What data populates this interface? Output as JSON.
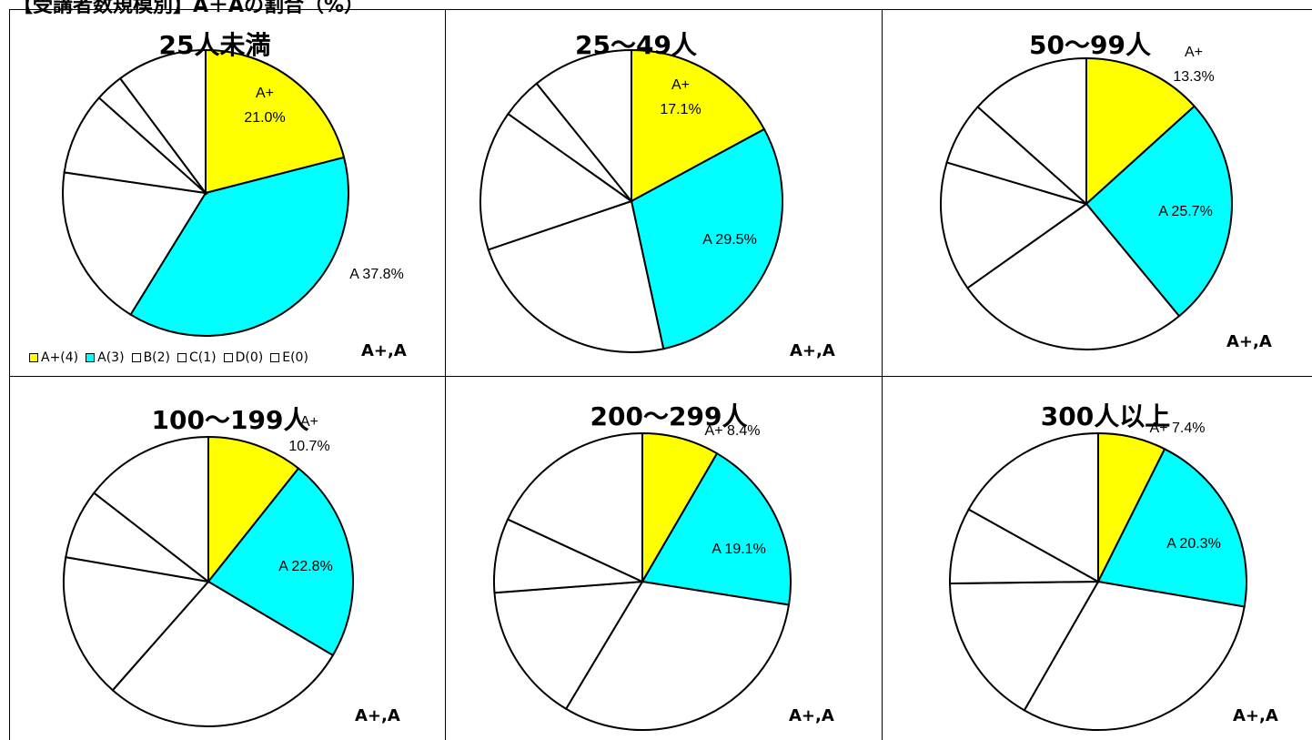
{
  "page_title": "【受講者数規模別】A＋Aの割合（%）",
  "colors": {
    "A+": "#ffff00",
    "A": "#00ffff",
    "other": "#ffffff",
    "stroke": "#000000"
  },
  "legend": [
    {
      "label": "A+(4)",
      "color": "#ffff00"
    },
    {
      "label": "A(3)",
      "color": "#00ffff"
    },
    {
      "label": "B(2)",
      "color": "#ffffff"
    },
    {
      "label": "C(1)",
      "color": "#ffffff"
    },
    {
      "label": "D(0)",
      "color": "#ffffff"
    },
    {
      "label": "E(0)",
      "color": "#ffffff"
    }
  ],
  "chart_data": [
    {
      "type": "pie",
      "title": "25人未満",
      "note": "A+,A",
      "slices": [
        {
          "name": "A+",
          "value": 21.0,
          "label_lines": [
            "A+",
            "21.0%"
          ]
        },
        {
          "name": "A",
          "value": 37.8,
          "label_lines": [
            "A 37.8%"
          ]
        },
        {
          "name": "B",
          "value": 18.5,
          "label_lines": []
        },
        {
          "name": "C",
          "value": 9.3,
          "label_lines": []
        },
        {
          "name": "D",
          "value": 3.2,
          "label_lines": []
        },
        {
          "name": "E",
          "value": 10.2,
          "label_lines": []
        }
      ]
    },
    {
      "type": "pie",
      "title": "25～49人",
      "note": "A+,A",
      "slices": [
        {
          "name": "A+",
          "value": 17.1,
          "label_lines": [
            "A+",
            "17.1%"
          ]
        },
        {
          "name": "A",
          "value": 29.5,
          "label_lines": [
            "A 29.5%"
          ]
        },
        {
          "name": "B",
          "value": 23.2,
          "label_lines": []
        },
        {
          "name": "C",
          "value": 15.0,
          "label_lines": []
        },
        {
          "name": "D",
          "value": 4.4,
          "label_lines": []
        },
        {
          "name": "E",
          "value": 10.8,
          "label_lines": []
        }
      ]
    },
    {
      "type": "pie",
      "title": "50～99人",
      "note": "A+,A",
      "slices": [
        {
          "name": "A+",
          "value": 13.3,
          "label_lines": [
            "A+",
            "13.3%"
          ]
        },
        {
          "name": "A",
          "value": 25.7,
          "label_lines": [
            "A 25.7%"
          ]
        },
        {
          "name": "B",
          "value": 26.2,
          "label_lines": []
        },
        {
          "name": "C",
          "value": 14.4,
          "label_lines": []
        },
        {
          "name": "D",
          "value": 7.0,
          "label_lines": []
        },
        {
          "name": "E",
          "value": 13.4,
          "label_lines": []
        }
      ]
    },
    {
      "type": "pie",
      "title": "100～199人",
      "note": "A+,A",
      "slices": [
        {
          "name": "A+",
          "value": 10.7,
          "label_lines": [
            "A+",
            "10.7%"
          ]
        },
        {
          "name": "A",
          "value": 22.8,
          "label_lines": [
            "A 22.8%"
          ]
        },
        {
          "name": "B",
          "value": 28.0,
          "label_lines": []
        },
        {
          "name": "C",
          "value": 16.2,
          "label_lines": []
        },
        {
          "name": "D",
          "value": 7.8,
          "label_lines": []
        },
        {
          "name": "E",
          "value": 14.5,
          "label_lines": []
        }
      ]
    },
    {
      "type": "pie",
      "title": "200～299人",
      "note": "A+,A",
      "slices": [
        {
          "name": "A+",
          "value": 8.4,
          "label_lines": [
            "A+ 8.4%"
          ]
        },
        {
          "name": "A",
          "value": 19.1,
          "label_lines": [
            "A 19.1%"
          ]
        },
        {
          "name": "B",
          "value": 31.1,
          "label_lines": []
        },
        {
          "name": "C",
          "value": 15.2,
          "label_lines": []
        },
        {
          "name": "D",
          "value": 8.1,
          "label_lines": []
        },
        {
          "name": "E",
          "value": 18.1,
          "label_lines": []
        }
      ]
    },
    {
      "type": "pie",
      "title": "300人以上",
      "note": "A+,A",
      "slices": [
        {
          "name": "A+",
          "value": 7.4,
          "label_lines": [
            "A+ 7.4%"
          ]
        },
        {
          "name": "A",
          "value": 20.3,
          "label_lines": [
            "A 20.3%"
          ]
        },
        {
          "name": "B",
          "value": 30.6,
          "label_lines": []
        },
        {
          "name": "C",
          "value": 16.5,
          "label_lines": []
        },
        {
          "name": "D",
          "value": 8.3,
          "label_lines": []
        },
        {
          "name": "E",
          "value": 16.9,
          "label_lines": []
        }
      ]
    }
  ]
}
